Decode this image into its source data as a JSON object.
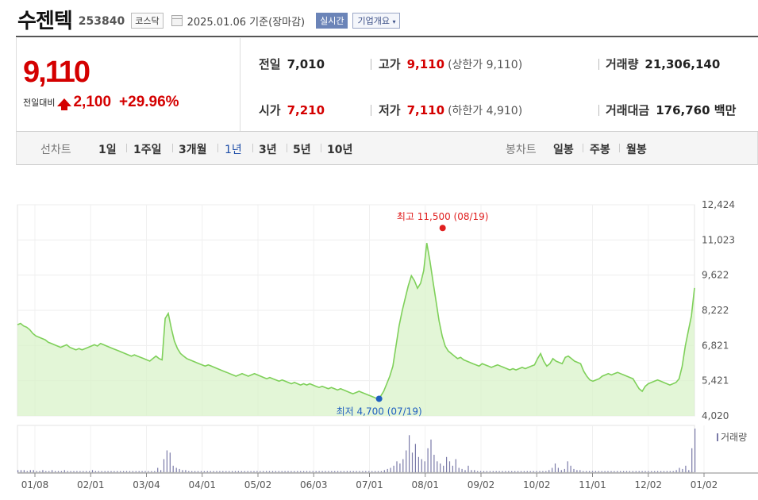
{
  "header": {
    "name": "수젠텍",
    "code": "253840",
    "market": "코스닥",
    "date": "2025.01.06 기준(장마감)",
    "live_label": "실시간",
    "corp_label": "기업개요"
  },
  "price": {
    "current": "9,110",
    "change_label": "전일대비",
    "change": "2,100",
    "change_pct": "+29.96%"
  },
  "stats": {
    "prev_label": "전일",
    "prev": "7,010",
    "high_label": "고가",
    "high": "9,110",
    "upper_label": "(상한가 9,110)",
    "volume_label": "거래량",
    "volume": "21,306,140",
    "open_label": "시가",
    "open": "7,210",
    "low_label": "저가",
    "low": "7,110",
    "lower_label": "(하한가 4,910)",
    "amount_label": "거래대금",
    "amount": "176,760",
    "amount_unit": "백만"
  },
  "nav": {
    "line_label": "선차트",
    "periods": [
      "1일",
      "1주일",
      "3개월",
      "1년",
      "3년",
      "5년",
      "10년"
    ],
    "active_period": "1년",
    "candle_label": "봉차트",
    "candles": [
      "일봉",
      "주봉",
      "월봉"
    ]
  },
  "colors": {
    "up": "#d40000",
    "line": "#7fd05a",
    "fill": "#d9f3c9",
    "low_marker": "#1f5fc0",
    "high_marker": "#e02020"
  },
  "chart_data": {
    "type": "area",
    "y_ticks": [
      "12,424",
      "11,023",
      "9,622",
      "8,222",
      "6,821",
      "5,421",
      "4,020"
    ],
    "ylim": [
      4020,
      12424
    ],
    "x_ticks": [
      "01/08",
      "02/01",
      "03/04",
      "04/01",
      "05/02",
      "06/03",
      "07/01",
      "08/01",
      "09/02",
      "10/02",
      "11/01",
      "12/02",
      "01/02"
    ],
    "high_annotation": "최고 11,500 (08/19)",
    "low_annotation": "최저 4,700 (07/19)",
    "high_value": 11500,
    "low_value": 4700,
    "volume_legend": "거래량",
    "series": [
      {
        "values": [
          7650,
          7700,
          7600,
          7550,
          7450,
          7300,
          7200,
          7150,
          7100,
          7050,
          6950,
          6900,
          6850,
          6800,
          6750,
          6800,
          6850,
          6750,
          6700,
          6650,
          6700,
          6650,
          6700,
          6750,
          6800,
          6850,
          6800,
          6900,
          6850,
          6800,
          6750,
          6700,
          6650,
          6600,
          6550,
          6500,
          6450,
          6400,
          6450,
          6400,
          6350,
          6300,
          6250,
          6200,
          6300,
          6400,
          6300,
          6250,
          7900,
          8100,
          7500,
          7000,
          6700,
          6500,
          6400,
          6300,
          6250,
          6200,
          6150,
          6100,
          6050,
          6000,
          6050,
          6000,
          5950,
          5900,
          5850,
          5800,
          5750,
          5700,
          5650,
          5600,
          5650,
          5700,
          5650,
          5600,
          5650,
          5700,
          5650,
          5600,
          5550,
          5500,
          5550,
          5500,
          5450,
          5400,
          5450,
          5400,
          5350,
          5300,
          5350,
          5300,
          5250,
          5300,
          5250,
          5300,
          5250,
          5200,
          5150,
          5200,
          5150,
          5100,
          5150,
          5100,
          5050,
          5100,
          5050,
          5000,
          4950,
          4900,
          4950,
          5000,
          4950,
          4900,
          4850,
          4800,
          4750,
          4700,
          4800,
          5000,
          5300,
          5600,
          6000,
          6800,
          7600,
          8200,
          8700,
          9200,
          9600,
          9400,
          9100,
          9300,
          9800,
          10900,
          10200,
          9400,
          8600,
          7800,
          7200,
          6800,
          6600,
          6500,
          6400,
          6300,
          6350,
          6250,
          6200,
          6150,
          6100,
          6050,
          6000,
          6100,
          6050,
          6000,
          5950,
          6000,
          6050,
          6000,
          5950,
          5900,
          5850,
          5900,
          5850,
          5900,
          5950,
          5900,
          5950,
          6000,
          6050,
          6300,
          6500,
          6200,
          6000,
          6100,
          6300,
          6200,
          6150,
          6100,
          6350,
          6400,
          6300,
          6200,
          6150,
          6100,
          5800,
          5600,
          5450,
          5400,
          5450,
          5500,
          5600,
          5650,
          5700,
          5650,
          5700,
          5750,
          5700,
          5650,
          5600,
          5550,
          5500,
          5300,
          5100,
          5000,
          5200,
          5300,
          5350,
          5400,
          5450,
          5400,
          5350,
          5300,
          5250,
          5300,
          5350,
          5500,
          6000,
          6800,
          7400,
          8000,
          9110
        ]
      }
    ],
    "volume": [
      2,
      2,
      2,
      1,
      2,
      2,
      1,
      1,
      2,
      1,
      1,
      2,
      1,
      1,
      1,
      2,
      1,
      1,
      1,
      1,
      1,
      1,
      1,
      1,
      2,
      1,
      1,
      1,
      1,
      1,
      1,
      1,
      1,
      1,
      1,
      1,
      1,
      1,
      1,
      1,
      1,
      1,
      1,
      1,
      1,
      4,
      2,
      12,
      20,
      18,
      6,
      4,
      3,
      2,
      2,
      1,
      1,
      1,
      1,
      1,
      1,
      1,
      1,
      1,
      1,
      1,
      1,
      1,
      1,
      1,
      1,
      1,
      1,
      1,
      1,
      1,
      1,
      1,
      1,
      1,
      1,
      1,
      1,
      1,
      1,
      1,
      1,
      1,
      1,
      1,
      1,
      1,
      1,
      1,
      1,
      1,
      1,
      1,
      1,
      1,
      1,
      1,
      1,
      1,
      1,
      1,
      1,
      1,
      1,
      1,
      1,
      1,
      1,
      1,
      1,
      1,
      1,
      1,
      2,
      3,
      4,
      6,
      10,
      8,
      12,
      20,
      34,
      18,
      26,
      14,
      12,
      10,
      22,
      30,
      16,
      10,
      8,
      6,
      14,
      10,
      6,
      12,
      4,
      3,
      2,
      6,
      2,
      2,
      1,
      1,
      1,
      1,
      1,
      1,
      1,
      1,
      1,
      1,
      1,
      1,
      1,
      1,
      1,
      1,
      1,
      1,
      1,
      1,
      1,
      1,
      1,
      2,
      4,
      8,
      4,
      2,
      3,
      10,
      6,
      3,
      2,
      2,
      1,
      1,
      1,
      1,
      1,
      1,
      1,
      1,
      1,
      1,
      1,
      1,
      1,
      1,
      1,
      1,
      1,
      1,
      1,
      1,
      1,
      1,
      1,
      1,
      1,
      1,
      1,
      1,
      1,
      1,
      2,
      4,
      3,
      6,
      2,
      22,
      40
    ]
  }
}
